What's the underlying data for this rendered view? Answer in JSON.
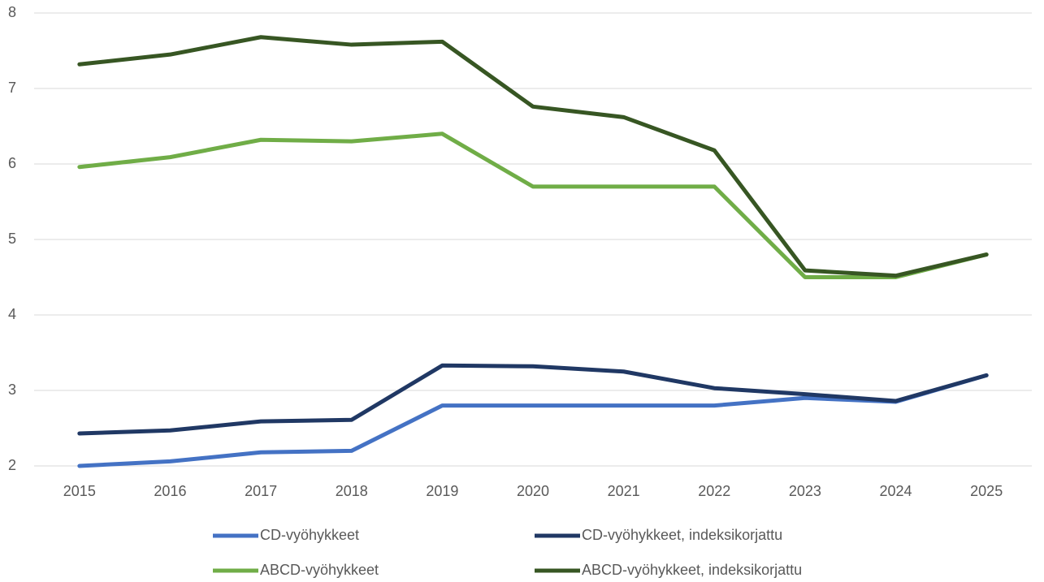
{
  "chart_data": {
    "type": "line",
    "categories": [
      "2015",
      "2016",
      "2017",
      "2018",
      "2019",
      "2020",
      "2021",
      "2022",
      "2023",
      "2024",
      "2025"
    ],
    "series": [
      {
        "name": "CD-vyöhykkeet",
        "color": "#4472c4",
        "values": [
          2.0,
          2.06,
          2.18,
          2.2,
          2.8,
          2.8,
          2.8,
          2.8,
          2.9,
          2.85,
          3.2
        ]
      },
      {
        "name": "CD-vyöhykkeet, indeksikorjattu",
        "color": "#203864",
        "values": [
          2.43,
          2.47,
          2.59,
          2.61,
          3.33,
          3.32,
          3.25,
          3.03,
          2.95,
          2.86,
          3.2
        ]
      },
      {
        "name": "ABCD-vyöhykkeet",
        "color": "#70ad47",
        "values": [
          5.96,
          6.09,
          6.32,
          6.3,
          6.4,
          5.7,
          5.7,
          5.7,
          4.5,
          4.5,
          4.8
        ]
      },
      {
        "name": "ABCD-vyöhykkeet, indeksikorjattu",
        "color": "#375623",
        "values": [
          7.32,
          7.45,
          7.68,
          7.58,
          7.62,
          6.76,
          6.62,
          6.18,
          4.59,
          4.52,
          4.8
        ]
      }
    ],
    "ylim": [
      2,
      8
    ],
    "yticks": [
      2,
      3,
      4,
      5,
      6,
      7,
      8
    ],
    "grid": true,
    "legend": "bottom"
  }
}
